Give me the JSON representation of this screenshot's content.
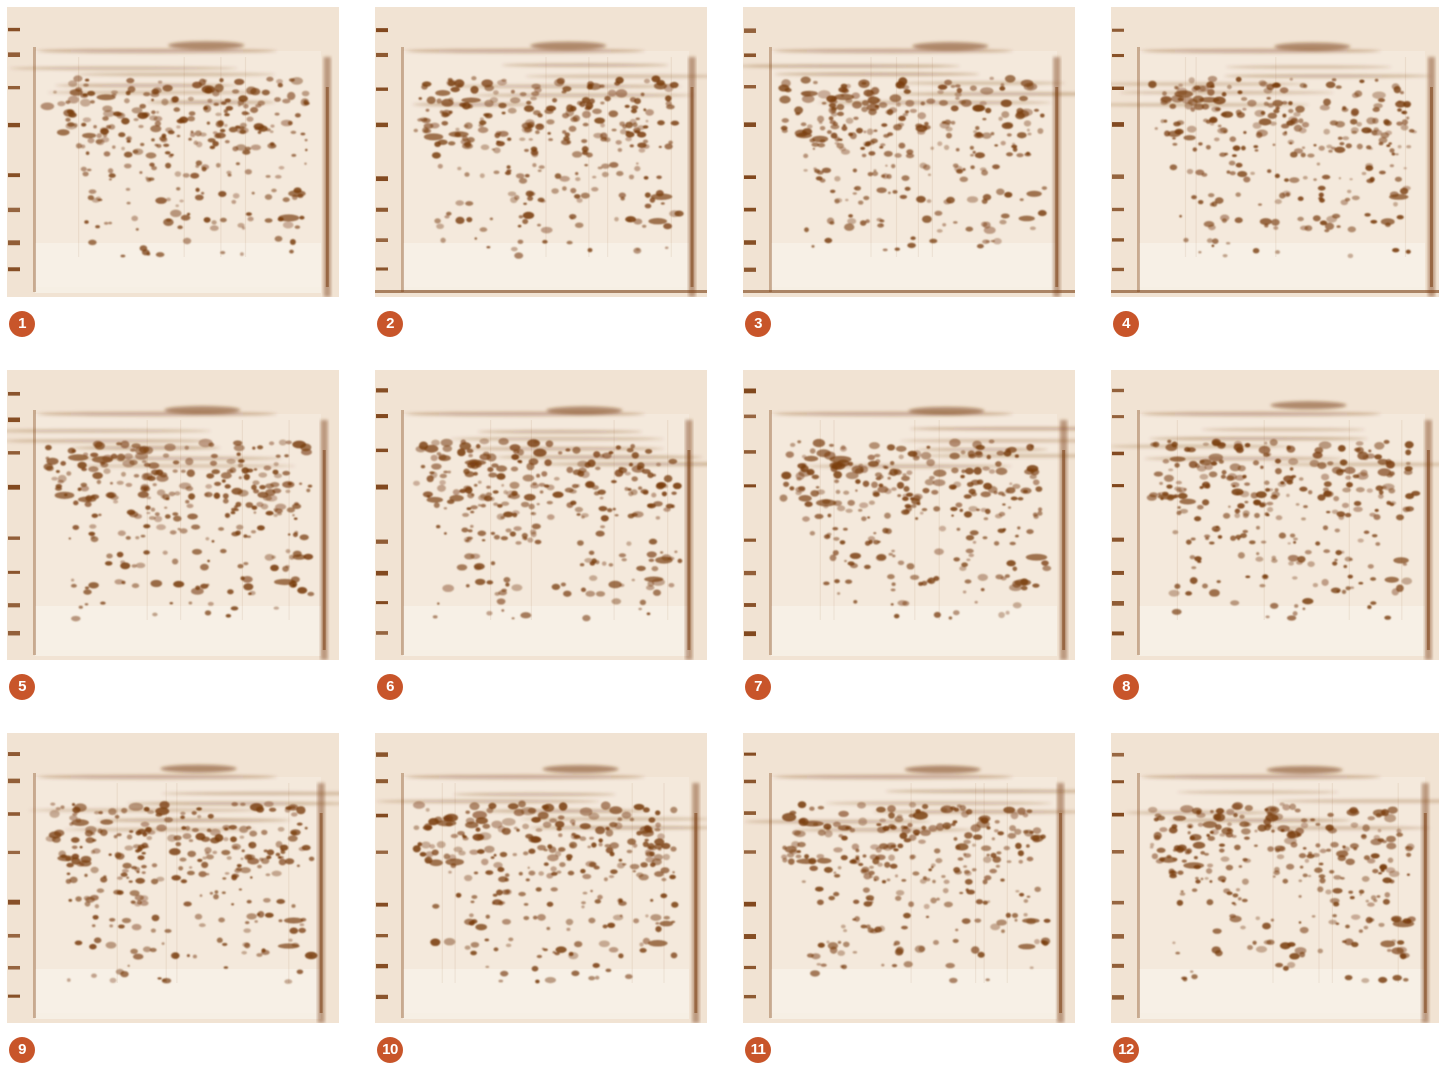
{
  "figure": {
    "panels": [
      {
        "label": "1"
      },
      {
        "label": "2"
      },
      {
        "label": "3"
      },
      {
        "label": "4"
      },
      {
        "label": "5"
      },
      {
        "label": "6"
      },
      {
        "label": "7"
      },
      {
        "label": "8"
      },
      {
        "label": "9"
      },
      {
        "label": "10"
      },
      {
        "label": "11"
      },
      {
        "label": "12"
      }
    ]
  },
  "colors": {
    "badge": "#c8552a",
    "gel_background": "#f1e3d3",
    "gel_stain": "#7a3e12"
  }
}
